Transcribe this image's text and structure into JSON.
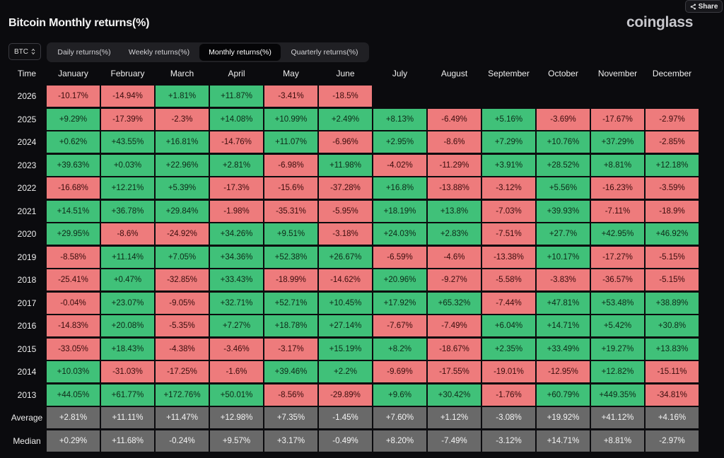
{
  "share_label": "Share",
  "title": "Bitcoin Monthly returns(%)",
  "brand": "coinglass",
  "coin_select": {
    "value": "BTC"
  },
  "tabs": [
    {
      "label": "Daily returns(%)",
      "active": false
    },
    {
      "label": "Weekly returns(%)",
      "active": false
    },
    {
      "label": "Monthly returns(%)",
      "active": true
    },
    {
      "label": "Quarterly returns(%)",
      "active": false
    }
  ],
  "table": {
    "time_header": "Time",
    "months": [
      "January",
      "February",
      "March",
      "April",
      "May",
      "June",
      "July",
      "August",
      "September",
      "October",
      "November",
      "December"
    ],
    "rows": [
      {
        "year": "2026",
        "values": [
          "-10.17%",
          "-14.94%",
          "+1.81%",
          "+11.87%",
          "-3.41%",
          "-18.5%"
        ]
      },
      {
        "year": "2025",
        "values": [
          "+9.29%",
          "-17.39%",
          "-2.3%",
          "+14.08%",
          "+10.99%",
          "+2.49%",
          "+8.13%",
          "-6.49%",
          "+5.16%",
          "-3.69%",
          "-17.67%",
          "-2.97%"
        ]
      },
      {
        "year": "2024",
        "values": [
          "+0.62%",
          "+43.55%",
          "+16.81%",
          "-14.76%",
          "+11.07%",
          "-6.96%",
          "+2.95%",
          "-8.6%",
          "+7.29%",
          "+10.76%",
          "+37.29%",
          "-2.85%"
        ]
      },
      {
        "year": "2023",
        "values": [
          "+39.63%",
          "+0.03%",
          "+22.96%",
          "+2.81%",
          "-6.98%",
          "+11.98%",
          "-4.02%",
          "-11.29%",
          "+3.91%",
          "+28.52%",
          "+8.81%",
          "+12.18%"
        ]
      },
      {
        "year": "2022",
        "values": [
          "-16.68%",
          "+12.21%",
          "+5.39%",
          "-17.3%",
          "-15.6%",
          "-37.28%",
          "+16.8%",
          "-13.88%",
          "-3.12%",
          "+5.56%",
          "-16.23%",
          "-3.59%"
        ]
      },
      {
        "year": "2021",
        "values": [
          "+14.51%",
          "+36.78%",
          "+29.84%",
          "-1.98%",
          "-35.31%",
          "-5.95%",
          "+18.19%",
          "+13.8%",
          "-7.03%",
          "+39.93%",
          "-7.11%",
          "-18.9%"
        ]
      },
      {
        "year": "2020",
        "values": [
          "+29.95%",
          "-8.6%",
          "-24.92%",
          "+34.26%",
          "+9.51%",
          "-3.18%",
          "+24.03%",
          "+2.83%",
          "-7.51%",
          "+27.7%",
          "+42.95%",
          "+46.92%"
        ]
      },
      {
        "year": "2019",
        "values": [
          "-8.58%",
          "+11.14%",
          "+7.05%",
          "+34.36%",
          "+52.38%",
          "+26.67%",
          "-6.59%",
          "-4.6%",
          "-13.38%",
          "+10.17%",
          "-17.27%",
          "-5.15%"
        ]
      },
      {
        "year": "2018",
        "values": [
          "-25.41%",
          "+0.47%",
          "-32.85%",
          "+33.43%",
          "-18.99%",
          "-14.62%",
          "+20.96%",
          "-9.27%",
          "-5.58%",
          "-3.83%",
          "-36.57%",
          "-5.15%"
        ]
      },
      {
        "year": "2017",
        "values": [
          "-0.04%",
          "+23.07%",
          "-9.05%",
          "+32.71%",
          "+52.71%",
          "+10.45%",
          "+17.92%",
          "+65.32%",
          "-7.44%",
          "+47.81%",
          "+53.48%",
          "+38.89%"
        ]
      },
      {
        "year": "2016",
        "values": [
          "-14.83%",
          "+20.08%",
          "-5.35%",
          "+7.27%",
          "+18.78%",
          "+27.14%",
          "-7.67%",
          "-7.49%",
          "+6.04%",
          "+14.71%",
          "+5.42%",
          "+30.8%"
        ]
      },
      {
        "year": "2015",
        "values": [
          "-33.05%",
          "+18.43%",
          "-4.38%",
          "-3.46%",
          "-3.17%",
          "+15.19%",
          "+8.2%",
          "-18.67%",
          "+2.35%",
          "+33.49%",
          "+19.27%",
          "+13.83%"
        ]
      },
      {
        "year": "2014",
        "values": [
          "+10.03%",
          "-31.03%",
          "-17.25%",
          "-1.6%",
          "+39.46%",
          "+2.2%",
          "-9.69%",
          "-17.55%",
          "-19.01%",
          "-12.95%",
          "+12.82%",
          "-15.11%"
        ]
      },
      {
        "year": "2013",
        "values": [
          "+44.05%",
          "+61.77%",
          "+172.76%",
          "+50.01%",
          "-8.56%",
          "-29.89%",
          "+9.6%",
          "+30.42%",
          "-1.76%",
          "+60.79%",
          "+449.35%",
          "-34.81%"
        ]
      }
    ],
    "stats": [
      {
        "label": "Average",
        "values": [
          "+2.81%",
          "+11.11%",
          "+11.47%",
          "+12.98%",
          "+7.35%",
          "-1.45%",
          "+7.60%",
          "+1.12%",
          "-3.08%",
          "+19.92%",
          "+41.12%",
          "+4.16%"
        ]
      },
      {
        "label": "Median",
        "values": [
          "+0.29%",
          "+11.68%",
          "-0.24%",
          "+9.57%",
          "+3.17%",
          "-0.49%",
          "+8.20%",
          "-7.49%",
          "-3.12%",
          "+14.71%",
          "+8.81%",
          "-2.97%"
        ]
      }
    ]
  },
  "colors": {
    "positive": "#40c179",
    "negative": "#ee7b7c",
    "stat": "#696969",
    "background": "#0b0b0e"
  }
}
